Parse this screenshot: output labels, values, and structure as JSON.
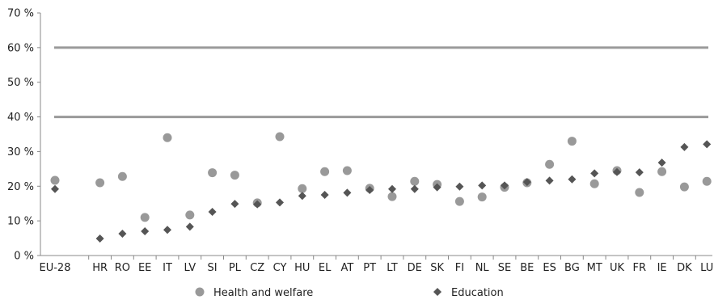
{
  "chart_data": {
    "type": "scatter",
    "categories": [
      "EU-28",
      "HR",
      "RO",
      "EE",
      "IT",
      "LV",
      "SI",
      "PL",
      "CZ",
      "CY",
      "HU",
      "EL",
      "AT",
      "PT",
      "LT",
      "DE",
      "SK",
      "FI",
      "NL",
      "SE",
      "BE",
      "ES",
      "BG",
      "MT",
      "UK",
      "FR",
      "IE",
      "DK",
      "LU"
    ],
    "series": [
      {
        "name": "Health and welfare",
        "marker": "circle",
        "color": "#999999",
        "values": [
          21.7,
          21.0,
          22.8,
          11.0,
          34.0,
          11.7,
          23.9,
          23.2,
          15.2,
          34.3,
          19.3,
          24.2,
          24.5,
          19.4,
          17.0,
          21.4,
          20.5,
          15.6,
          16.9,
          19.7,
          21.0,
          26.3,
          33.0,
          20.7,
          24.5,
          18.2,
          24.2,
          19.8,
          21.4
        ]
      },
      {
        "name": "Education",
        "marker": "diamond",
        "color": "#555555",
        "values": [
          19.2,
          4.9,
          6.3,
          7.0,
          7.4,
          8.3,
          12.6,
          14.9,
          14.8,
          15.3,
          17.2,
          17.5,
          18.1,
          18.9,
          19.2,
          19.2,
          19.7,
          19.9,
          20.2,
          20.2,
          21.2,
          21.6,
          22.0,
          23.7,
          24.1,
          24.0,
          26.8,
          31.3,
          32.1
        ]
      }
    ],
    "y_ticks": [
      "0 %",
      "10 %",
      "20 %",
      "30 %",
      "40 %",
      "50 %",
      "60 %",
      "70 %"
    ],
    "ylim": [
      0,
      70
    ],
    "reference_lines": [
      40,
      60
    ],
    "grid": false,
    "legend": "bottom",
    "title": "",
    "xlabel": "",
    "ylabel": ""
  }
}
